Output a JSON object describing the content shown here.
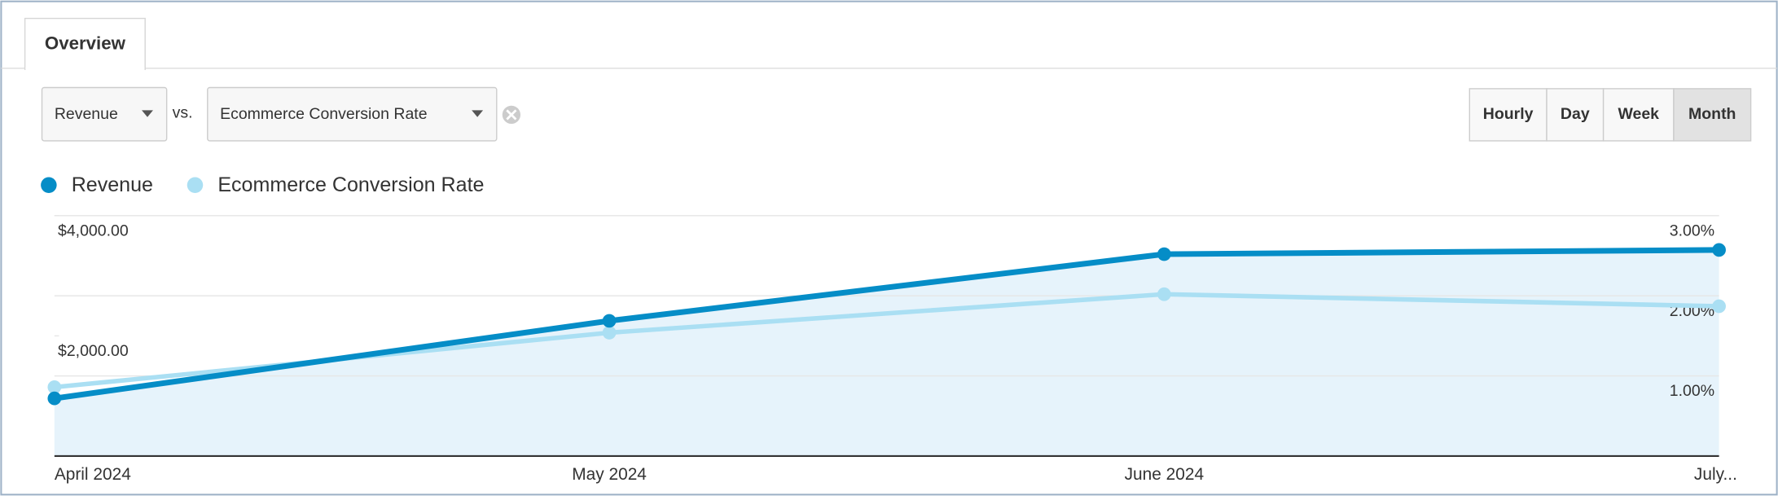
{
  "tabs": [
    "Overview"
  ],
  "controls": {
    "metric": "Revenue",
    "vs": "vs.",
    "compare": "Ecommerce Conversion Rate",
    "intervals": [
      "Hourly",
      "Day",
      "Week",
      "Month"
    ],
    "active_interval": 3
  },
  "chart_data": {
    "type": "line",
    "categories": [
      "April 2024",
      "May 2024",
      "June 2024",
      "July..."
    ],
    "series": [
      {
        "name": "Revenue",
        "color": "#058dc7",
        "values": [
          960,
          2250,
          3360,
          3430
        ]
      },
      {
        "name": "Ecommerce Conversion Rate",
        "color": "#aadff3",
        "axis": "y2",
        "values": [
          0.86,
          1.54,
          2.02,
          1.87
        ]
      }
    ],
    "ylim": [
      0,
      4000
    ],
    "yticks": [
      {
        "value": 2000,
        "label": "$2,000.00"
      },
      {
        "value": 4000,
        "label": "$4,000.00"
      }
    ],
    "y2lim": [
      0,
      3
    ],
    "y2ticks": [
      {
        "value": 1,
        "label": "1.00%"
      },
      {
        "value": 2,
        "label": "2.00%"
      },
      {
        "value": 3,
        "label": "3.00%"
      }
    ],
    "grid": true,
    "area_fill": "#e6f3fb"
  }
}
